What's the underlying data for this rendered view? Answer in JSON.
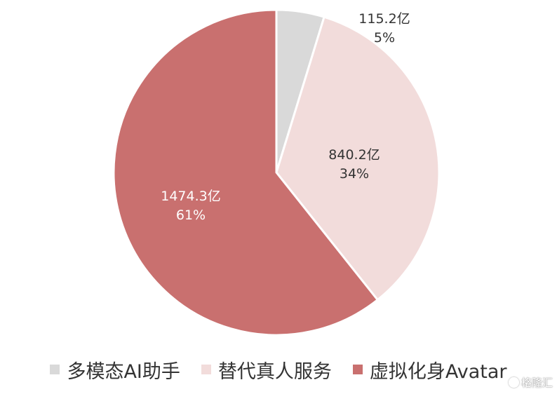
{
  "chart_data": {
    "type": "pie",
    "title": "",
    "series": [
      {
        "name": "多模态AI助手",
        "value": 115.2,
        "value_label": "115.2亿",
        "percent_label": "5%",
        "color": "#d9d9d9",
        "label_color": "#333333"
      },
      {
        "name": "替代真人服务",
        "value": 840.2,
        "value_label": "840.2亿",
        "percent_label": "34%",
        "color": "#f2dcdb",
        "label_color": "#333333"
      },
      {
        "name": "虚拟化身Avatar",
        "value": 1474.3,
        "value_label": "1474.3亿",
        "percent_label": "61%",
        "color": "#c9706f",
        "label_color": "#ffffff"
      }
    ],
    "start_angle": "12 o'clock",
    "direction": "clockwise",
    "legend_position": "bottom"
  },
  "watermark": {
    "text": "格隆汇",
    "icon": "gelonghui-logo-icon"
  }
}
